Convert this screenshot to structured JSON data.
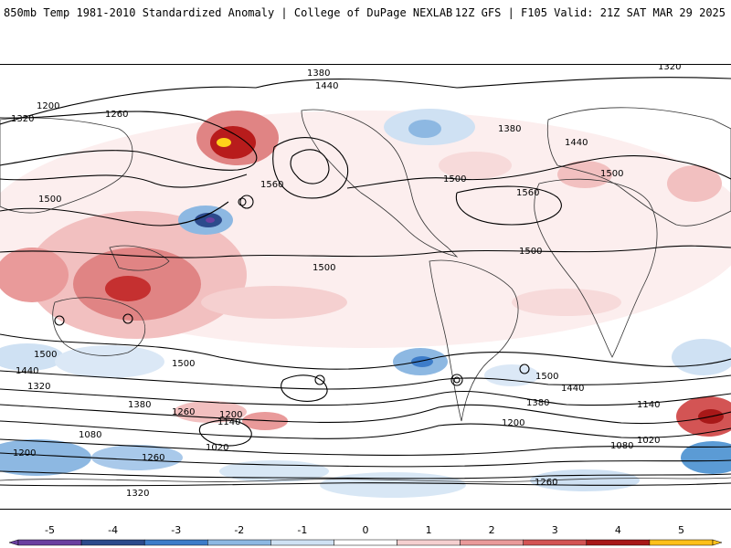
{
  "header": {
    "title": "850mb Temp 1981-2010 Standardized Anomaly | College of DuPage NEXLAB",
    "run_info": "12Z GFS | F105 Valid: 21Z SAT MAR 29 2025"
  },
  "map": {
    "contour_labels": [
      "1380",
      "1320",
      "1440",
      "1200",
      "1260",
      "1500",
      "1560",
      "1320",
      "1380",
      "1440",
      "1500",
      "1560",
      "1500",
      "1500",
      "1500",
      "1500",
      "1500",
      "1440",
      "1320",
      "1380",
      "1260",
      "1200",
      "1140",
      "1080",
      "1020",
      "1200",
      "1260",
      "1320",
      "1380",
      "1440",
      "1500",
      "1140",
      "1080",
      "1020",
      "1200",
      "1260"
    ],
    "colors": {
      "cold_extreme": "#6a3fa0",
      "cold_strong": "#1f5fb0",
      "cold_mod": "#5b9bd5",
      "cold_weak": "#a9c9ea",
      "cold_slight": "#d8e7f5",
      "warm_slight": "#f7dada",
      "warm_weak": "#ecaaaa",
      "warm_mod": "#d96060",
      "warm_strong": "#b81c1c",
      "warm_extreme": "#7a0000",
      "peak": "#ffd21a"
    }
  },
  "colorbar": {
    "ticks": [
      "-5",
      "-4",
      "-3",
      "-2",
      "-1",
      "0",
      "1",
      "2",
      "3",
      "4",
      "5"
    ],
    "colors": [
      "#6a3fa0",
      "#2c4a8c",
      "#3d7cc9",
      "#8db8e2",
      "#cfe1f3",
      "#ffffff",
      "#f5d0d0",
      "#e99a9a",
      "#d35454",
      "#a81818",
      "#ffc01a"
    ]
  }
}
